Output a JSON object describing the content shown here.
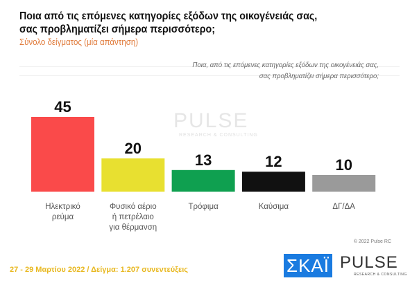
{
  "header": {
    "title_line1": "Ποια από τις επόμενες κατηγορίες εξόδων της οικογένειάς σας,",
    "title_line2": "σας προβληματίζει σήμερα περισσότερο;",
    "subtitle": "Σύνολο δείγματος   (μία απάντηση)",
    "note_line1": "Ποια, από τις επόμενες κατηγορίες εξόδων της οικογένειάς σας,",
    "note_line2": "σας προβληματίζει σήμερα περισσότερο;"
  },
  "chart_data": {
    "type": "bar",
    "categories": [
      "Ηλεκτρικό ρεύμα",
      "Φυσικό αέριο ή πετρέλαιο για θέρμανση",
      "Τρόφιμα",
      "Καύσιμα",
      "ΔΓ/ΔΑ"
    ],
    "category_lines": [
      [
        "Ηλεκτρικό",
        "ρεύμα"
      ],
      [
        "Φυσικό αέριο",
        "ή πετρέλαιο",
        "για θέρμανση"
      ],
      [
        "Τρόφιμα"
      ],
      [
        "Καύσιμα"
      ],
      [
        "ΔΓ/ΔΑ"
      ]
    ],
    "values": [
      45,
      20,
      13,
      12,
      10
    ],
    "colors": [
      "#fa4a4a",
      "#e8e030",
      "#0fa050",
      "#111111",
      "#9a9a9a"
    ],
    "ylim": [
      0,
      50
    ],
    "grid": false,
    "data_labels": true
  },
  "watermark": {
    "brand": "PULSE",
    "tagline": "RESEARCH & CONSULTING"
  },
  "footer": {
    "copyright": "© 2022 Pulse RC",
    "text": "27 - 29  Μαρτίου  2022  /  Δείγμα:  1.207 συνεντεύξεις"
  },
  "logos": {
    "skai": "ΣΚΑΪ",
    "pulse": "PULSE",
    "pulse_sub": "RESEARCH & CONSULTING"
  }
}
